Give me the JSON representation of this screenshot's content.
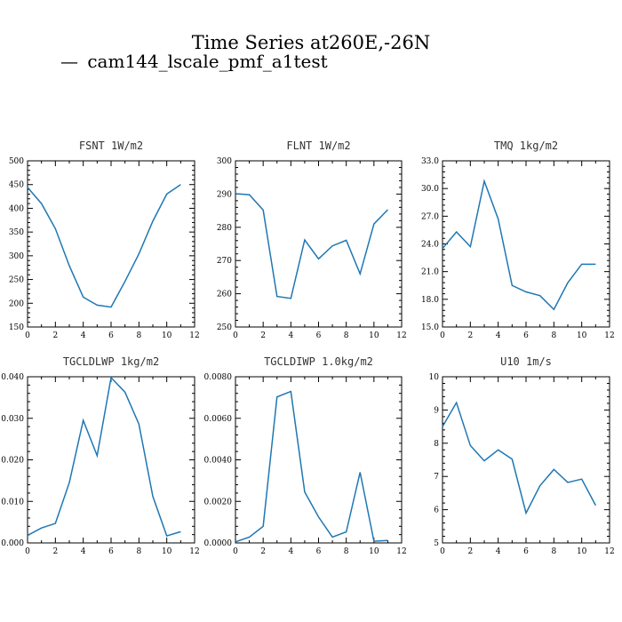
{
  "figure": {
    "title": "Time Series at260E,-26N",
    "legend_entry": "cam144_lscale_pmf_a1test",
    "legend_symbol": "—",
    "line_color": "#1f77b4"
  },
  "chart_data": [
    {
      "type": "line",
      "title": "FSNT  1W/m2",
      "xlim": [
        0,
        12
      ],
      "x_ticks": [
        "0",
        "2",
        "4",
        "6",
        "8",
        "10",
        "12"
      ],
      "ylim": [
        150,
        500
      ],
      "y_ticks": [
        "150",
        "200",
        "250",
        "300",
        "350",
        "400",
        "450",
        "500"
      ],
      "x": [
        0,
        1,
        2,
        3,
        4,
        5,
        6,
        7,
        8,
        9,
        10,
        11
      ],
      "series": [
        {
          "name": "cam144_lscale_pmf_a1test",
          "values": [
            444,
            410,
            357,
            279,
            213,
            196,
            192,
            246,
            304,
            373,
            430,
            450
          ]
        }
      ]
    },
    {
      "type": "line",
      "title": "FLNT  1W/m2",
      "xlim": [
        0,
        12
      ],
      "x_ticks": [
        "0",
        "2",
        "4",
        "6",
        "8",
        "10",
        "12"
      ],
      "ylim": [
        250,
        300
      ],
      "y_ticks": [
        "250",
        "260",
        "270",
        "280",
        "290",
        "300"
      ],
      "x": [
        0,
        1,
        2,
        3,
        4,
        5,
        6,
        7,
        8,
        9,
        10,
        11
      ],
      "series": [
        {
          "name": "cam144_lscale_pmf_a1test",
          "values": [
            290.1,
            289.8,
            285.2,
            259.2,
            258.6,
            276.2,
            270.5,
            274.4,
            276.1,
            266.0,
            281.0,
            285.3
          ]
        }
      ]
    },
    {
      "type": "line",
      "title": "TMQ  1kg/m2",
      "xlim": [
        0,
        12
      ],
      "x_ticks": [
        "0",
        "2",
        "4",
        "6",
        "8",
        "10",
        "12"
      ],
      "ylim": [
        15,
        33
      ],
      "y_ticks": [
        "15.0",
        "18.0",
        "21.0",
        "24.0",
        "27.0",
        "30.0",
        "33.0"
      ],
      "x": [
        0,
        1,
        2,
        3,
        4,
        5,
        6,
        7,
        8,
        9,
        10,
        11
      ],
      "series": [
        {
          "name": "cam144_lscale_pmf_a1test",
          "values": [
            23.5,
            25.3,
            23.7,
            30.8,
            26.7,
            19.5,
            18.8,
            18.4,
            16.9,
            19.8,
            21.8,
            21.8
          ]
        }
      ]
    },
    {
      "type": "line",
      "title": "TGCLDLWP  1kg/m2",
      "xlim": [
        0,
        12
      ],
      "x_ticks": [
        "0",
        "2",
        "4",
        "6",
        "8",
        "10",
        "12"
      ],
      "ylim": [
        0,
        0.04
      ],
      "y_ticks": [
        "0.000",
        "0.010",
        "0.020",
        "0.030",
        "0.040"
      ],
      "x": [
        0,
        1,
        2,
        3,
        4,
        5,
        6,
        7,
        8,
        9,
        10,
        11
      ],
      "series": [
        {
          "name": "cam144_lscale_pmf_a1test",
          "values": [
            0.0018,
            0.0036,
            0.0047,
            0.0145,
            0.0295,
            0.021,
            0.0398,
            0.0363,
            0.0286,
            0.0112,
            0.0017,
            0.0027
          ]
        }
      ]
    },
    {
      "type": "line",
      "title": "TGCLDIWP  1.0kg/m2",
      "xlim": [
        0,
        12
      ],
      "x_ticks": [
        "0",
        "2",
        "4",
        "6",
        "8",
        "10",
        "12"
      ],
      "ylim": [
        0,
        0.008
      ],
      "y_ticks": [
        "0.0000",
        "0.0020",
        "0.0040",
        "0.0060",
        "0.0080"
      ],
      "x": [
        0,
        1,
        2,
        3,
        4,
        5,
        6,
        7,
        8,
        9,
        10,
        11
      ],
      "series": [
        {
          "name": "cam144_lscale_pmf_a1test",
          "values": [
            5e-05,
            0.00028,
            0.0008,
            0.00703,
            0.00729,
            0.00245,
            0.00125,
            0.00028,
            0.00053,
            0.0034,
            8e-05,
            0.00012
          ]
        }
      ]
    },
    {
      "type": "line",
      "title": "U10  1m/s",
      "xlim": [
        0,
        12
      ],
      "x_ticks": [
        "0",
        "2",
        "4",
        "6",
        "8",
        "10",
        "12"
      ],
      "ylim": [
        5,
        10
      ],
      "y_ticks": [
        "5",
        "6",
        "7",
        "8",
        "9",
        "10"
      ],
      "x": [
        0,
        1,
        2,
        3,
        4,
        5,
        6,
        7,
        8,
        9,
        10,
        11
      ],
      "series": [
        {
          "name": "cam144_lscale_pmf_a1test",
          "values": [
            8.5,
            9.22,
            7.93,
            7.47,
            7.8,
            7.52,
            5.9,
            6.72,
            7.21,
            6.82,
            6.92,
            6.13
          ]
        }
      ]
    }
  ]
}
